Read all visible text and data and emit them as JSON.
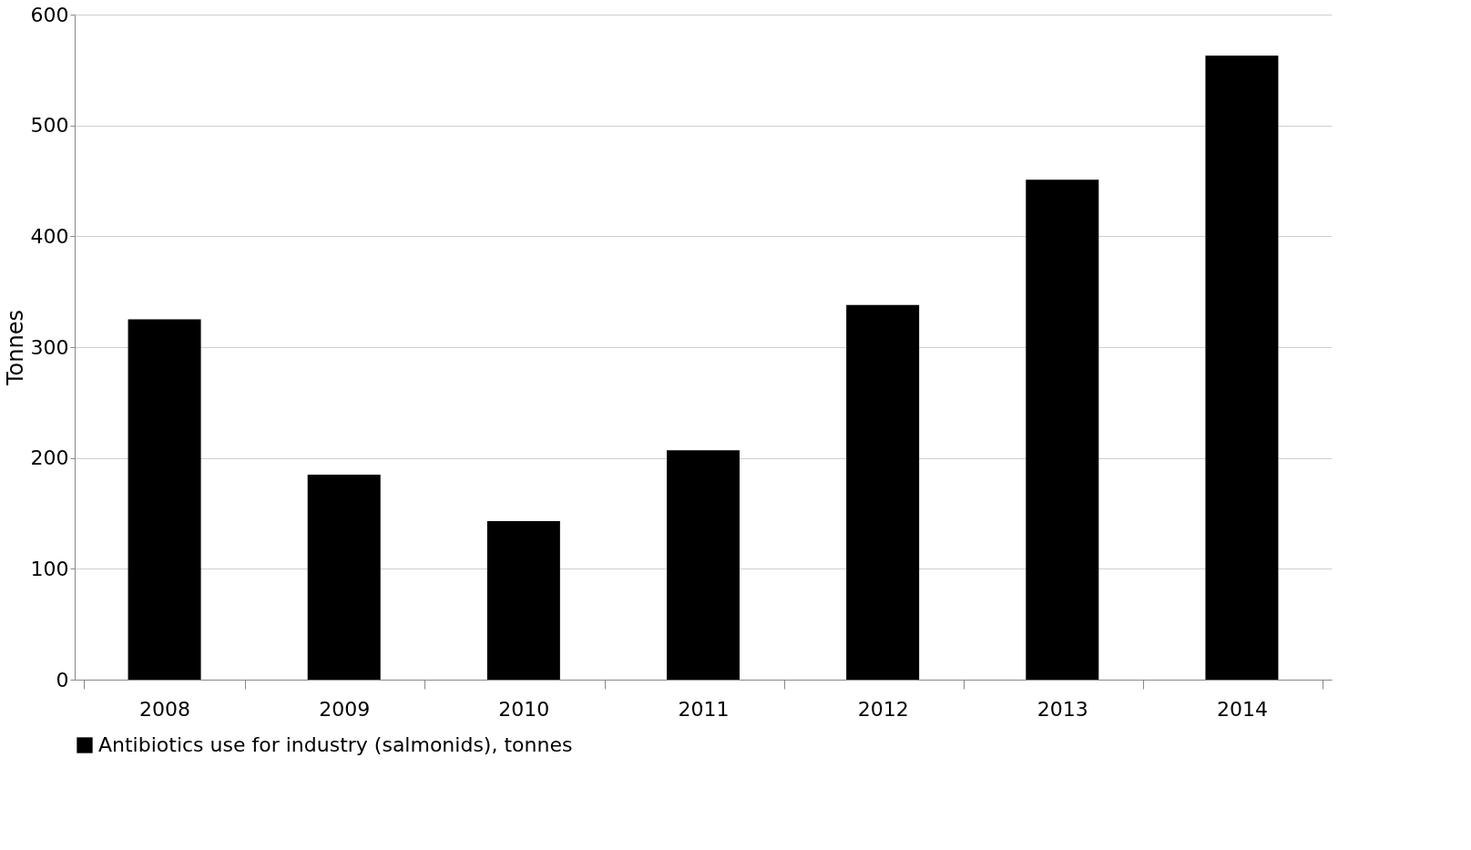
{
  "chart_data": {
    "type": "bar",
    "ylabel": "Tonnes",
    "categories": [
      "2008",
      "2009",
      "2010",
      "2011",
      "2012",
      "2013",
      "2014"
    ],
    "series": [
      {
        "name": "Antibiotics use for industry (salmonids), tonnes",
        "color": "#000000",
        "values": [
          325,
          185,
          143,
          207,
          338,
          451,
          563
        ]
      }
    ],
    "ylim": [
      0,
      600
    ],
    "yticks": [
      0,
      100,
      200,
      300,
      400,
      500,
      600
    ],
    "grid": "y",
    "legend": "bottom"
  }
}
